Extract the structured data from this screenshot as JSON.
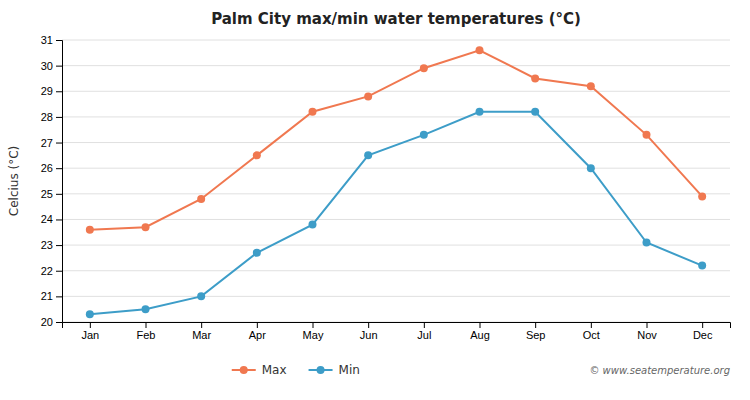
{
  "chart_data": {
    "type": "line",
    "title": "Palm City max/min water temperatures (°C)",
    "ylabel": "Celcius (°C)",
    "categories": [
      "Jan",
      "Feb",
      "Mar",
      "Apr",
      "May",
      "Jun",
      "Jul",
      "Aug",
      "Sep",
      "Oct",
      "Nov",
      "Dec"
    ],
    "series": [
      {
        "name": "Max",
        "color": "#f07850",
        "marker": "circle",
        "values": [
          23.6,
          23.7,
          24.8,
          26.5,
          28.2,
          28.8,
          29.9,
          30.6,
          29.5,
          29.2,
          27.3,
          24.9
        ]
      },
      {
        "name": "Min",
        "color": "#3d9dc8",
        "marker": "circle",
        "values": [
          20.3,
          20.5,
          21.0,
          22.7,
          23.8,
          26.5,
          27.3,
          28.2,
          28.2,
          26.0,
          23.1,
          22.2
        ]
      }
    ],
    "ylim": [
      20,
      31
    ],
    "yticks": [
      20,
      21,
      22,
      23,
      24,
      25,
      26,
      27,
      28,
      29,
      30,
      31
    ],
    "grid": true,
    "legend": "bottom",
    "annotations": [
      "© www.seatemperature.org"
    ]
  }
}
